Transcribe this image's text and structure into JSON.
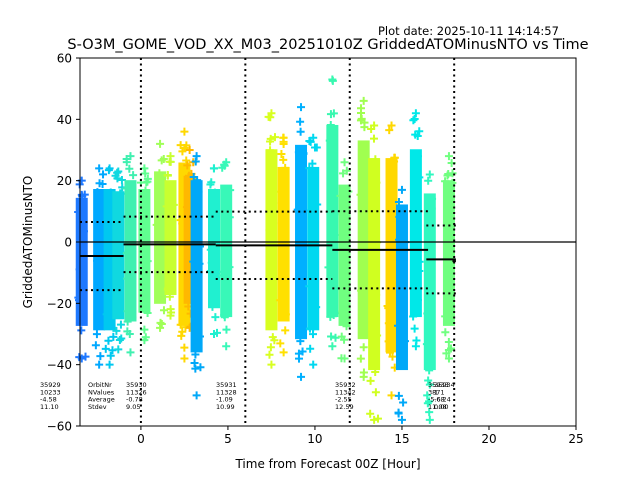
{
  "plot_date": "Plot date: 2025-10-11 14:14:57",
  "chart_data": {
    "type": "scatter",
    "title": "S-O3M_GOME_VOD_XX_M03_20251010Z GriddedATOMinusNTO vs Time",
    "xlabel": "Time from Forecast 00Z [Hour]",
    "ylabel": "GriddedATOMinusNTO",
    "xlim": [
      -3.5,
      25
    ],
    "ylim": [
      -60,
      60
    ],
    "xticks": [
      "0",
      "5",
      "10",
      "15",
      "20",
      "25"
    ],
    "xtick_values": [
      0,
      5,
      10,
      15,
      20,
      25
    ],
    "yticks": [
      "−60",
      "−40",
      "−20",
      "0",
      "20",
      "40",
      "60"
    ],
    "ytick_values": [
      -60,
      -40,
      -20,
      0,
      20,
      40,
      60
    ],
    "grid": false,
    "zero_line": 0,
    "vertical_dotted_lines": [
      0,
      6,
      12,
      18
    ],
    "stats_labels": [
      "OrbitNr",
      "NValues",
      "Average",
      "Stdev"
    ],
    "orbits": [
      {
        "orbit": "35929",
        "nvalues": "10233",
        "average": "-4.58",
        "stdev": "11.10",
        "x_start": -3.5,
        "x_end": -1.0,
        "mean": -4.58,
        "std": 11.1
      },
      {
        "orbit": "35930",
        "nvalues": "11326",
        "average": "-0.78",
        "stdev": "9.05",
        "x_start": -1.0,
        "x_end": 4.3,
        "mean": -0.78,
        "std": 9.05
      },
      {
        "orbit": "35931",
        "nvalues": "11328",
        "average": "-1.09",
        "stdev": "10.99",
        "x_start": 4.3,
        "x_end": 11.0,
        "mean": -1.09,
        "std": 10.99
      },
      {
        "orbit": "35932",
        "nvalues": "11342",
        "average": "-2.55",
        "stdev": "12.59",
        "x_start": 11.0,
        "x_end": 16.5,
        "mean": -2.55,
        "std": 12.59
      },
      {
        "orbit": "35933",
        "nvalues": "3871",
        "average": "-5.68",
        "stdev": "11.08",
        "x_start": 16.4,
        "x_end": 18.1,
        "mean": -5.68,
        "std": 11.08
      },
      {
        "orbit": "35934",
        "nvalues": "1",
        "average": "-6.24",
        "stdev": "0.00",
        "x_start": 17.9,
        "x_end": 18.1,
        "mean": -6.24,
        "std": 0.0
      }
    ],
    "bands": [
      {
        "x": -3.4,
        "ymin": -38,
        "ymax": 20,
        "color": "#1e78ff"
      },
      {
        "x": -2.4,
        "ymin": -40,
        "ymax": 24,
        "color": "#00a8ff"
      },
      {
        "x": -1.8,
        "ymin": -40,
        "ymax": 24,
        "color": "#00c8f0"
      },
      {
        "x": -1.3,
        "ymin": -35,
        "ymax": 23,
        "color": "#10d8e0"
      },
      {
        "x": -0.6,
        "ymin": -36,
        "ymax": 28,
        "color": "#40f0b0"
      },
      {
        "x": 0.2,
        "ymin": -32,
        "ymax": 24,
        "color": "#60ff90"
      },
      {
        "x": 1.1,
        "ymin": -28,
        "ymax": 32,
        "color": "#a0ff58"
      },
      {
        "x": 1.7,
        "ymin": -24,
        "ymax": 28,
        "color": "#c8ff30"
      },
      {
        "x": 2.5,
        "ymin": -38,
        "ymax": 36,
        "color": "#ffd800"
      },
      {
        "x": 2.8,
        "ymin": -28,
        "ymax": 30,
        "color": "#ffb800"
      },
      {
        "x": 3.2,
        "ymin": -50,
        "ymax": 28,
        "color": "#00a8f8"
      },
      {
        "x": 4.2,
        "ymin": -30,
        "ymax": 24,
        "color": "#20f0d0"
      },
      {
        "x": 4.9,
        "ymin": -34,
        "ymax": 26,
        "color": "#38f8b8"
      },
      {
        "x": 7.5,
        "ymin": -40,
        "ymax": 42,
        "color": "#d8ff20"
      },
      {
        "x": 8.2,
        "ymin": -36,
        "ymax": 34,
        "color": "#ffe000"
      },
      {
        "x": 9.2,
        "ymin": -44,
        "ymax": 44,
        "color": "#00b0ff"
      },
      {
        "x": 9.9,
        "ymin": -40,
        "ymax": 34,
        "color": "#00d8f0"
      },
      {
        "x": 11.0,
        "ymin": -34,
        "ymax": 53,
        "color": "#38f8b0"
      },
      {
        "x": 11.7,
        "ymin": -38,
        "ymax": 26,
        "color": "#70ff80"
      },
      {
        "x": 12.8,
        "ymin": -44,
        "ymax": 46,
        "color": "#a0ff50"
      },
      {
        "x": 13.4,
        "ymin": -58,
        "ymax": 38,
        "color": "#d0ff20"
      },
      {
        "x": 14.4,
        "ymin": -50,
        "ymax": 38,
        "color": "#ffd800"
      },
      {
        "x": 15.0,
        "ymin": -58,
        "ymax": 17,
        "color": "#00a8f8"
      },
      {
        "x": 15.8,
        "ymin": -34,
        "ymax": 42,
        "color": "#00e8e8"
      },
      {
        "x": 16.6,
        "ymin": -58,
        "ymax": 22,
        "color": "#30f8c0"
      },
      {
        "x": 17.7,
        "ymin": -38,
        "ymax": 28,
        "color": "#70ff80"
      }
    ]
  }
}
